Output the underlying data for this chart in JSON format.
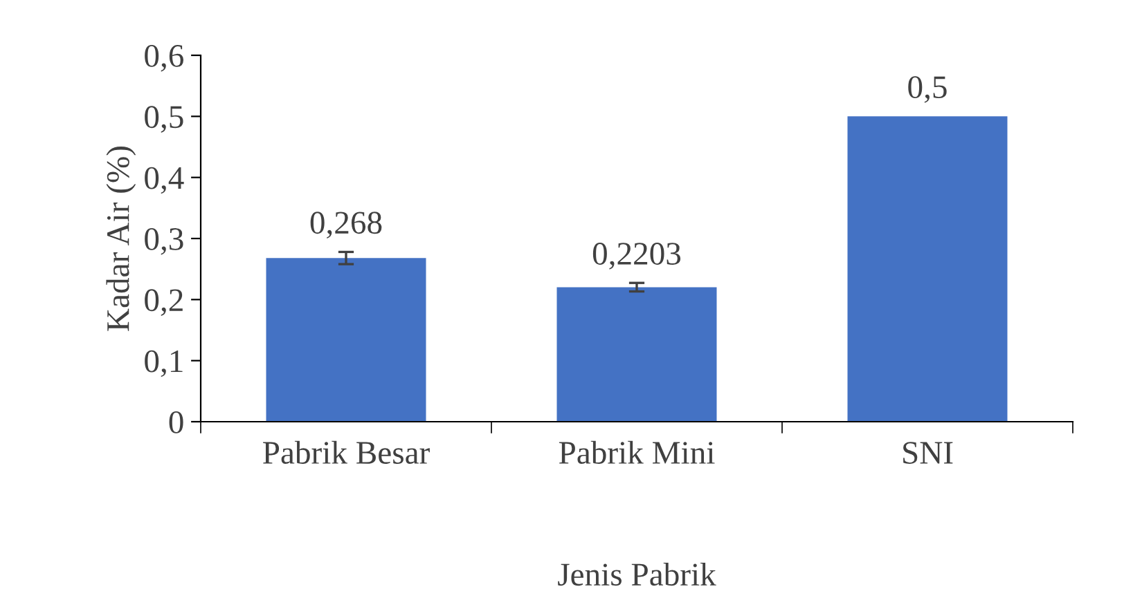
{
  "chart_data": {
    "type": "bar",
    "xlabel": "Jenis Pabrik",
    "ylabel": "Kadar Air (%)",
    "categories": [
      "Pabrik Besar",
      "Pabrik Mini",
      "SNI"
    ],
    "values": [
      0.268,
      0.2203,
      0.5
    ],
    "errors": [
      0.01,
      0.007,
      null
    ],
    "value_labels": [
      "0,268",
      "0,2203",
      "0,5"
    ],
    "color": "#4472c4",
    "ylim": [
      0,
      0.6
    ],
    "yticks": [
      0,
      {
        "value": 0.1,
        "label": "0,1"
      },
      {
        "value": 0.2,
        "label": "0,2"
      },
      {
        "value": 0.3,
        "label": "0,3"
      },
      {
        "value": 0.4,
        "label": "0,4"
      },
      {
        "value": 0.5,
        "label": "0,5"
      },
      {
        "value": 0.6,
        "label": "0,6"
      }
    ],
    "grid": false,
    "legend": false
  }
}
